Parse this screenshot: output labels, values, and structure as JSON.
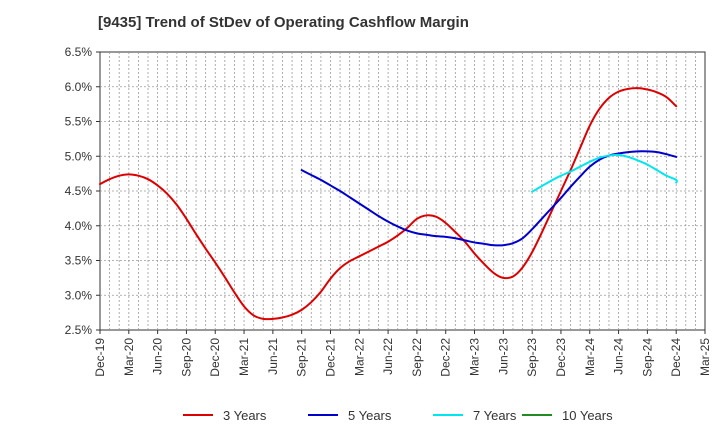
{
  "chart_data": {
    "type": "line",
    "title": "[9435]  Trend of StDev of Operating Cashflow Margin",
    "xlabel": "",
    "ylabel": "",
    "ylim": [
      2.5,
      6.5
    ],
    "grid": true,
    "legend_position": "bottom",
    "y_ticks": [
      "2.5%",
      "3.0%",
      "3.5%",
      "4.0%",
      "4.5%",
      "5.0%",
      "5.5%",
      "6.0%",
      "6.5%"
    ],
    "x_ticks": [
      "Dec-19",
      "Mar-20",
      "Jun-20",
      "Sep-20",
      "Dec-20",
      "Mar-21",
      "Jun-21",
      "Sep-21",
      "Dec-21",
      "Mar-22",
      "Jun-22",
      "Sep-22",
      "Dec-22",
      "Mar-23",
      "Jun-23",
      "Sep-23",
      "Dec-23",
      "Mar-24",
      "Jun-24",
      "Sep-24",
      "Dec-24",
      "Mar-25"
    ],
    "series": [
      {
        "name": "3 Years",
        "color": "#dd0000",
        "points": [
          [
            "Dec-19",
            4.6
          ],
          [
            "Jan-20",
            4.67
          ],
          [
            "Feb-20",
            4.72
          ],
          [
            "Mar-20",
            4.74
          ],
          [
            "Apr-20",
            4.72
          ],
          [
            "May-20",
            4.67
          ],
          [
            "Jun-20",
            4.58
          ],
          [
            "Jul-20",
            4.46
          ],
          [
            "Aug-20",
            4.3
          ],
          [
            "Sep-20",
            4.1
          ],
          [
            "Oct-20",
            3.88
          ],
          [
            "Nov-20",
            3.67
          ],
          [
            "Dec-20",
            3.47
          ],
          [
            "Jan-21",
            3.26
          ],
          [
            "Feb-21",
            3.04
          ],
          [
            "Mar-21",
            2.84
          ],
          [
            "Apr-21",
            2.71
          ],
          [
            "May-21",
            2.66
          ],
          [
            "Jun-21",
            2.66
          ],
          [
            "Jul-21",
            2.68
          ],
          [
            "Aug-21",
            2.72
          ],
          [
            "Sep-21",
            2.79
          ],
          [
            "Oct-21",
            2.9
          ],
          [
            "Nov-21",
            3.05
          ],
          [
            "Dec-21",
            3.24
          ],
          [
            "Jan-22",
            3.39
          ],
          [
            "Feb-22",
            3.49
          ],
          [
            "Mar-22",
            3.56
          ],
          [
            "Apr-22",
            3.63
          ],
          [
            "May-22",
            3.7
          ],
          [
            "Jun-22",
            3.77
          ],
          [
            "Jul-22",
            3.86
          ],
          [
            "Aug-22",
            3.97
          ],
          [
            "Sep-22",
            4.1
          ],
          [
            "Oct-22",
            4.15
          ],
          [
            "Nov-22",
            4.13
          ],
          [
            "Dec-22",
            4.04
          ],
          [
            "Jan-23",
            3.91
          ],
          [
            "Feb-23",
            3.77
          ],
          [
            "Mar-23",
            3.6
          ],
          [
            "Apr-23",
            3.45
          ],
          [
            "May-23",
            3.32
          ],
          [
            "Jun-23",
            3.25
          ],
          [
            "Jul-23",
            3.27
          ],
          [
            "Aug-23",
            3.4
          ],
          [
            "Sep-23",
            3.62
          ],
          [
            "Oct-23",
            3.9
          ],
          [
            "Nov-23",
            4.2
          ],
          [
            "Dec-23",
            4.5
          ],
          [
            "Jan-24",
            4.8
          ],
          [
            "Feb-24",
            5.12
          ],
          [
            "Mar-24",
            5.44
          ],
          [
            "Apr-24",
            5.68
          ],
          [
            "May-24",
            5.84
          ],
          [
            "Jun-24",
            5.93
          ],
          [
            "Jul-24",
            5.97
          ],
          [
            "Aug-24",
            5.98
          ],
          [
            "Sep-24",
            5.96
          ],
          [
            "Oct-24",
            5.92
          ],
          [
            "Nov-24",
            5.85
          ],
          [
            "Dec-24",
            5.72
          ]
        ]
      },
      {
        "name": "5 Years",
        "color": "#0000cc",
        "points": [
          [
            "Sep-21",
            4.8
          ],
          [
            "Oct-21",
            4.73
          ],
          [
            "Nov-21",
            4.66
          ],
          [
            "Dec-21",
            4.58
          ],
          [
            "Jan-22",
            4.5
          ],
          [
            "Feb-22",
            4.41
          ],
          [
            "Mar-22",
            4.32
          ],
          [
            "Apr-22",
            4.23
          ],
          [
            "May-22",
            4.14
          ],
          [
            "Jun-22",
            4.06
          ],
          [
            "Jul-22",
            3.99
          ],
          [
            "Aug-22",
            3.93
          ],
          [
            "Sep-22",
            3.89
          ],
          [
            "Oct-22",
            3.87
          ],
          [
            "Nov-22",
            3.85
          ],
          [
            "Dec-22",
            3.84
          ],
          [
            "Jan-23",
            3.82
          ],
          [
            "Feb-23",
            3.79
          ],
          [
            "Mar-23",
            3.76
          ],
          [
            "Apr-23",
            3.74
          ],
          [
            "May-23",
            3.72
          ],
          [
            "Jun-23",
            3.72
          ],
          [
            "Jul-23",
            3.75
          ],
          [
            "Aug-23",
            3.82
          ],
          [
            "Sep-23",
            3.95
          ],
          [
            "Oct-23",
            4.1
          ],
          [
            "Nov-23",
            4.25
          ],
          [
            "Dec-23",
            4.4
          ],
          [
            "Jan-24",
            4.56
          ],
          [
            "Feb-24",
            4.71
          ],
          [
            "Mar-24",
            4.85
          ],
          [
            "Apr-24",
            4.95
          ],
          [
            "May-24",
            5.01
          ],
          [
            "Jun-24",
            5.04
          ],
          [
            "Jul-24",
            5.06
          ],
          [
            "Aug-24",
            5.07
          ],
          [
            "Sep-24",
            5.07
          ],
          [
            "Oct-24",
            5.06
          ],
          [
            "Nov-24",
            5.03
          ],
          [
            "Dec-24",
            4.99
          ]
        ]
      },
      {
        "name": "7 Years",
        "color": "#00e5ee",
        "points": [
          [
            "Sep-23",
            4.49
          ],
          [
            "Oct-23",
            4.57
          ],
          [
            "Nov-23",
            4.65
          ],
          [
            "Dec-23",
            4.72
          ],
          [
            "Jan-24",
            4.78
          ],
          [
            "Feb-24",
            4.85
          ],
          [
            "Mar-24",
            4.92
          ],
          [
            "Apr-24",
            4.98
          ],
          [
            "May-24",
            5.01
          ],
          [
            "Jun-24",
            5.02
          ],
          [
            "Jul-24",
            4.99
          ],
          [
            "Aug-24",
            4.94
          ],
          [
            "Sep-24",
            4.88
          ],
          [
            "Oct-24",
            4.8
          ],
          [
            "Nov-24",
            4.72
          ],
          [
            "Dec-24",
            4.66
          ],
          [
            "Dec-24",
            4.62
          ]
        ]
      },
      {
        "name": "10 Years",
        "color": "#228b22",
        "points": []
      }
    ]
  }
}
